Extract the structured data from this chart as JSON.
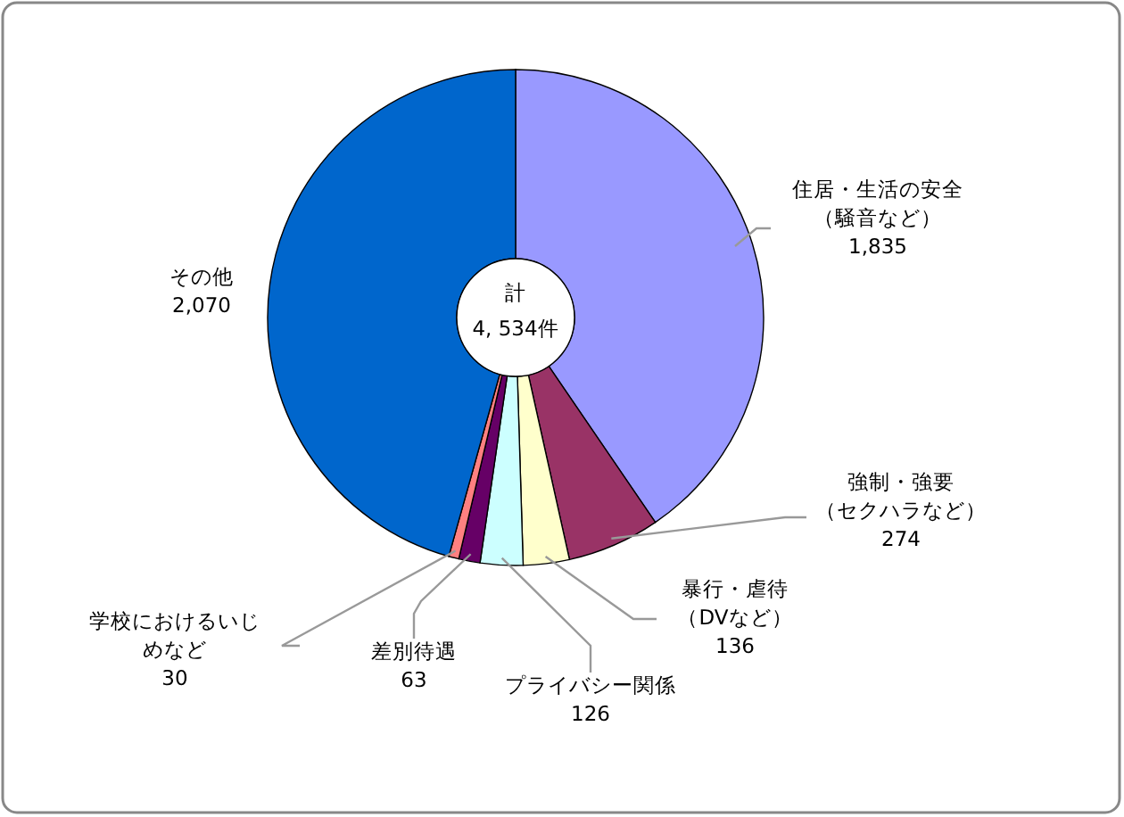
{
  "chart_data": {
    "type": "donut",
    "categories": [
      "住居・生活の安全（騒音など）",
      "強制・強要（セクハラなど）",
      "暴行・虐待（DVなど）",
      "プライバシー関係",
      "差別待遇",
      "学校におけるいじめなど",
      "その他"
    ],
    "values": [
      1835,
      274,
      136,
      126,
      63,
      30,
      2070
    ],
    "value_labels": [
      "1,835",
      "274",
      "136",
      "126",
      "63",
      "30",
      "2,070"
    ],
    "colors": [
      "#9999ff",
      "#993366",
      "#ffffcc",
      "#ccffff",
      "#660066",
      "#ff8080",
      "#0066cc"
    ],
    "annotations": [
      "計",
      "4, 534件"
    ]
  }
}
